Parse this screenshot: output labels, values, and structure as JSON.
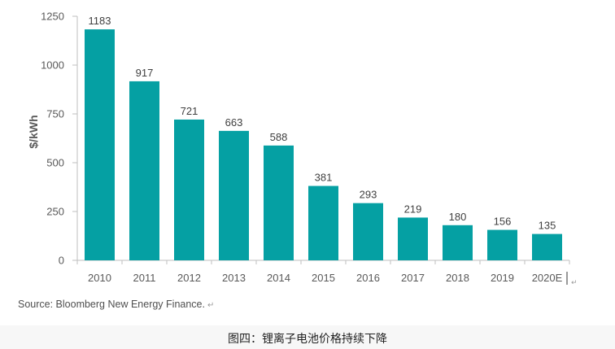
{
  "chart_data": {
    "type": "bar",
    "title": "",
    "xlabel": "",
    "ylabel": "$/kWh",
    "categories": [
      "2010",
      "2011",
      "2012",
      "2013",
      "2014",
      "2015",
      "2016",
      "2017",
      "2018",
      "2019",
      "2020E"
    ],
    "values": [
      1183,
      917,
      721,
      663,
      588,
      381,
      293,
      219,
      180,
      156,
      135
    ],
    "ylim": [
      0,
      1250
    ],
    "yticks": [
      "0",
      "250",
      "500",
      "750",
      "1000",
      "1250"
    ],
    "ytick_values": [
      0,
      250,
      500,
      750,
      1000,
      1250
    ],
    "grid": false,
    "legend": "none",
    "data_labels": true
  },
  "source_text": "Source: Bloomberg New Energy Finance.",
  "return_glyph": "↵",
  "axis_end_glyph": "↵",
  "caption": "图四：锂离子电池价格持续下降",
  "colors": {
    "bar": "#05a0a3",
    "axis": "#bfbfbf",
    "tick_text": "#595959",
    "value_text": "#404040"
  }
}
